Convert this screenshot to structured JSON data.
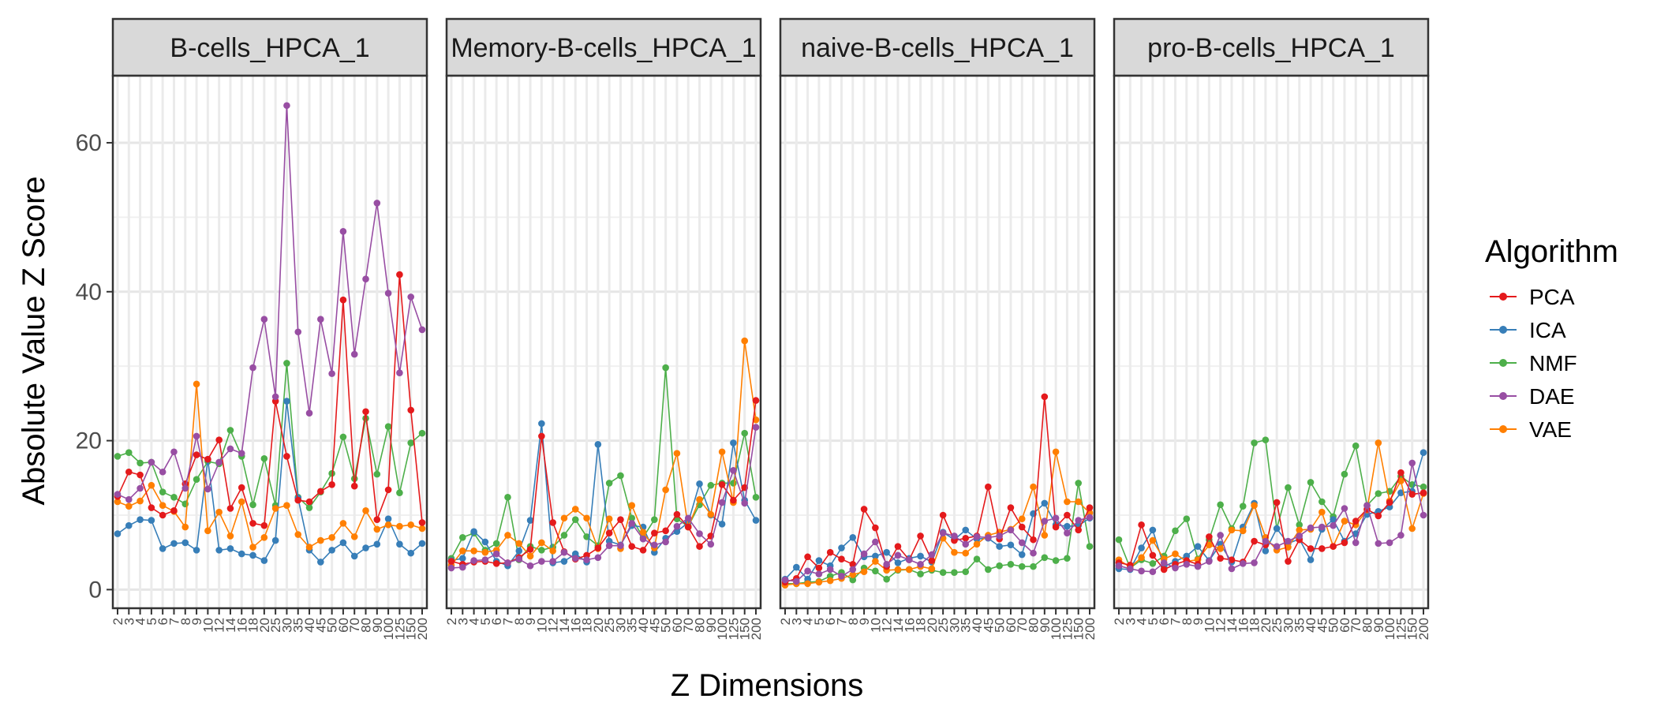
{
  "chart_data": {
    "type": "line",
    "xlabel": "Z Dimensions",
    "ylabel": "Absolute Value Z Score",
    "ylim": [
      -2.5,
      69
    ],
    "yticks": [
      0,
      20,
      40,
      60
    ],
    "x": [
      "2",
      "3",
      "4",
      "5",
      "6",
      "7",
      "8",
      "9",
      "10",
      "12",
      "14",
      "16",
      "18",
      "20",
      "25",
      "30",
      "35",
      "40",
      "45",
      "50",
      "60",
      "70",
      "80",
      "90",
      "100",
      "125",
      "150",
      "200"
    ],
    "grid": true,
    "legend": {
      "title": "Algorithm",
      "position": "right"
    },
    "colors": {
      "PCA": "#E41A1C",
      "ICA": "#377EB8",
      "NMF": "#4DAF4A",
      "DAE": "#984EA3",
      "VAE": "#FF7F00"
    },
    "panels": [
      {
        "title": "B-cells_HPCA_1",
        "series": [
          {
            "name": "PCA",
            "values": [
              12.5,
              15.8,
              15.4,
              11.0,
              10.0,
              10.6,
              14.2,
              18.1,
              17.5,
              20.1,
              10.9,
              13.7,
              8.9,
              8.6,
              25.3,
              17.9,
              12.0,
              11.8,
              13.2,
              14.1,
              38.9,
              13.9,
              23.9,
              9.4,
              13.4,
              42.3,
              24.1,
              9.0
            ]
          },
          {
            "name": "ICA",
            "values": [
              7.5,
              8.6,
              9.4,
              9.3,
              5.5,
              6.2,
              6.3,
              5.3,
              17.5,
              5.3,
              5.5,
              4.8,
              4.6,
              3.9,
              6.6,
              25.3,
              12.3,
              5.3,
              3.7,
              5.3,
              6.3,
              4.5,
              5.6,
              6.1,
              9.5,
              6.1,
              4.9,
              6.2
            ]
          },
          {
            "name": "NMF",
            "values": [
              17.9,
              18.4,
              17.0,
              17.1,
              13.1,
              12.4,
              11.5,
              14.8,
              17.2,
              16.9,
              21.4,
              17.9,
              11.4,
              17.6,
              11.3,
              30.4,
              12.4,
              11.0,
              13.1,
              15.6,
              20.5,
              14.9,
              23.0,
              15.5,
              21.9,
              13.0,
              19.7,
              21.0
            ]
          },
          {
            "name": "DAE",
            "values": [
              12.8,
              12.1,
              13.6,
              17.1,
              15.8,
              18.5,
              13.6,
              20.6,
              13.5,
              17.1,
              18.9,
              18.3,
              29.8,
              36.3,
              25.9,
              65.0,
              34.6,
              23.7,
              36.3,
              29.0,
              48.1,
              31.6,
              41.7,
              51.9,
              39.8,
              29.1,
              39.3,
              34.9
            ]
          },
          {
            "name": "VAE",
            "values": [
              11.8,
              11.2,
              11.9,
              14.0,
              11.3,
              10.5,
              8.4,
              27.6,
              7.9,
              10.4,
              7.2,
              11.8,
              5.7,
              7.0,
              10.9,
              11.3,
              7.4,
              5.7,
              6.6,
              7.0,
              8.9,
              7.1,
              10.6,
              8.1,
              8.7,
              8.5,
              8.7,
              8.2
            ]
          }
        ]
      },
      {
        "title": "Memory-B-cells_HPCA_1",
        "series": [
          {
            "name": "PCA",
            "values": [
              3.8,
              3.4,
              3.7,
              3.8,
              3.5,
              3.6,
              4.3,
              5.4,
              20.6,
              9.0,
              5.1,
              4.1,
              4.6,
              5.6,
              7.6,
              9.4,
              5.8,
              5.3,
              7.6,
              7.9,
              10.1,
              8.4,
              5.8,
              7.2,
              14.1,
              12.0,
              13.7,
              25.4
            ]
          },
          {
            "name": "ICA",
            "values": [
              3.9,
              4.2,
              7.8,
              6.4,
              3.8,
              3.2,
              5.2,
              9.3,
              22.3,
              3.6,
              3.8,
              4.8,
              3.7,
              19.5,
              6.5,
              6.0,
              8.6,
              8.4,
              5.0,
              6.9,
              7.8,
              9.0,
              14.2,
              10.0,
              8.8,
              19.7,
              12.0,
              9.3
            ]
          },
          {
            "name": "NMF",
            "values": [
              4.2,
              7.0,
              7.6,
              5.3,
              6.2,
              12.4,
              4.0,
              5.8,
              5.3,
              5.7,
              7.3,
              9.4,
              7.1,
              5.9,
              14.3,
              15.3,
              9.6,
              7.0,
              9.4,
              29.8,
              9.5,
              8.5,
              11.4,
              14.0,
              14.3,
              14.3,
              21.0,
              12.4
            ]
          },
          {
            "name": "DAE",
            "values": [
              2.9,
              3.0,
              3.9,
              4.0,
              4.8,
              3.6,
              4.1,
              3.2,
              3.8,
              3.8,
              5.0,
              4.2,
              4.0,
              4.3,
              5.9,
              5.9,
              8.9,
              6.8,
              6.0,
              6.4,
              8.5,
              9.6,
              7.5,
              6.1,
              11.7,
              16.0,
              11.6,
              21.8
            ]
          },
          {
            "name": "VAE",
            "values": [
              3.3,
              5.2,
              5.2,
              5.0,
              5.3,
              7.3,
              6.2,
              4.5,
              6.3,
              5.2,
              9.6,
              10.8,
              9.6,
              5.5,
              9.5,
              5.5,
              11.3,
              7.7,
              5.6,
              13.4,
              18.3,
              8.4,
              12.1,
              10.1,
              18.5,
              11.7,
              33.4,
              22.8
            ]
          }
        ]
      },
      {
        "title": "naive-B-cells_HPCA_1",
        "series": [
          {
            "name": "PCA",
            "values": [
              1.0,
              1.5,
              4.4,
              2.9,
              5.0,
              4.1,
              3.4,
              10.8,
              8.3,
              3.1,
              5.8,
              4.0,
              7.2,
              3.9,
              10.0,
              6.6,
              6.9,
              7.2,
              13.8,
              6.8,
              11.0,
              8.4,
              6.7,
              25.9,
              8.4,
              10.0,
              8.0,
              11.0
            ]
          },
          {
            "name": "ICA",
            "values": [
              1.4,
              3.0,
              1.4,
              3.9,
              3.2,
              5.6,
              7.0,
              4.4,
              4.5,
              5.0,
              3.6,
              4.2,
              4.5,
              3.7,
              7.7,
              6.7,
              8.0,
              6.8,
              6.9,
              5.8,
              6.0,
              4.7,
              10.2,
              11.6,
              8.7,
              8.5,
              8.6,
              9.6
            ]
          },
          {
            "name": "NMF",
            "values": [
              0.8,
              0.8,
              1.0,
              1.1,
              1.8,
              2.3,
              1.3,
              2.9,
              2.5,
              1.4,
              2.6,
              2.7,
              2.1,
              2.6,
              2.3,
              2.3,
              2.4,
              4.1,
              2.7,
              3.2,
              3.4,
              3.1,
              3.1,
              4.3,
              3.9,
              4.2,
              14.3,
              5.8
            ]
          },
          {
            "name": "DAE",
            "values": [
              1.3,
              1.1,
              2.5,
              2.1,
              2.7,
              1.8,
              2.7,
              4.8,
              6.4,
              3.4,
              4.6,
              4.0,
              3.4,
              4.7,
              7.6,
              7.2,
              6.1,
              7.1,
              7.0,
              7.2,
              8.0,
              6.3,
              4.9,
              9.2,
              9.6,
              7.6,
              9.3,
              9.7
            ]
          },
          {
            "name": "VAE",
            "values": [
              0.6,
              0.8,
              0.8,
              1.0,
              1.2,
              1.5,
              2.0,
              2.4,
              3.8,
              2.6,
              2.7,
              2.7,
              3.1,
              2.8,
              6.9,
              5.0,
              4.9,
              6.1,
              7.3,
              7.7,
              8.1,
              9.5,
              13.8,
              7.3,
              18.5,
              11.8,
              11.8,
              10.3
            ]
          }
        ]
      },
      {
        "title": "pro-B-cells_HPCA_1",
        "series": [
          {
            "name": "PCA",
            "values": [
              3.6,
              3.3,
              8.7,
              4.6,
              2.7,
              3.4,
              3.9,
              3.4,
              7.1,
              4.2,
              4.0,
              3.7,
              6.5,
              6.0,
              11.7,
              3.8,
              6.7,
              5.5,
              5.5,
              5.8,
              6.3,
              9.2,
              10.8,
              9.9,
              11.7,
              15.7,
              12.8,
              13.0
            ]
          },
          {
            "name": "ICA",
            "values": [
              2.8,
              2.7,
              5.6,
              8.0,
              3.1,
              3.8,
              4.5,
              5.8,
              3.9,
              6.1,
              3.7,
              8.4,
              11.6,
              5.2,
              8.2,
              6.2,
              6.8,
              4.0,
              8.1,
              9.4,
              6.5,
              7.5,
              10.1,
              10.5,
              11.1,
              13.0,
              13.2,
              18.4
            ]
          },
          {
            "name": "NMF",
            "values": [
              6.7,
              2.9,
              4.0,
              3.5,
              4.5,
              7.9,
              9.5,
              4.1,
              6.7,
              11.4,
              8.2,
              11.2,
              19.7,
              20.1,
              8.2,
              13.7,
              8.7,
              14.4,
              11.8,
              9.8,
              15.5,
              19.3,
              11.3,
              12.9,
              13.2,
              15.2,
              14.1,
              13.8
            ]
          },
          {
            "name": "DAE",
            "values": [
              3.2,
              2.8,
              2.5,
              2.4,
              3.6,
              2.9,
              3.4,
              3.1,
              3.8,
              7.3,
              2.8,
              3.5,
              3.6,
              6.5,
              5.8,
              6.5,
              7.2,
              8.3,
              8.4,
              8.6,
              10.9,
              6.3,
              11.3,
              6.2,
              6.3,
              7.3,
              17.0,
              10.0
            ]
          },
          {
            "name": "VAE",
            "values": [
              4.0,
              3.0,
              4.3,
              6.6,
              4.1,
              4.8,
              3.8,
              4.0,
              6.0,
              5.5,
              8.0,
              7.9,
              11.3,
              7.0,
              5.3,
              5.7,
              8.0,
              8.1,
              10.4,
              5.8,
              9.2,
              8.7,
              10.7,
              19.7,
              11.9,
              14.6,
              8.2,
              12.9
            ]
          }
        ]
      }
    ]
  }
}
